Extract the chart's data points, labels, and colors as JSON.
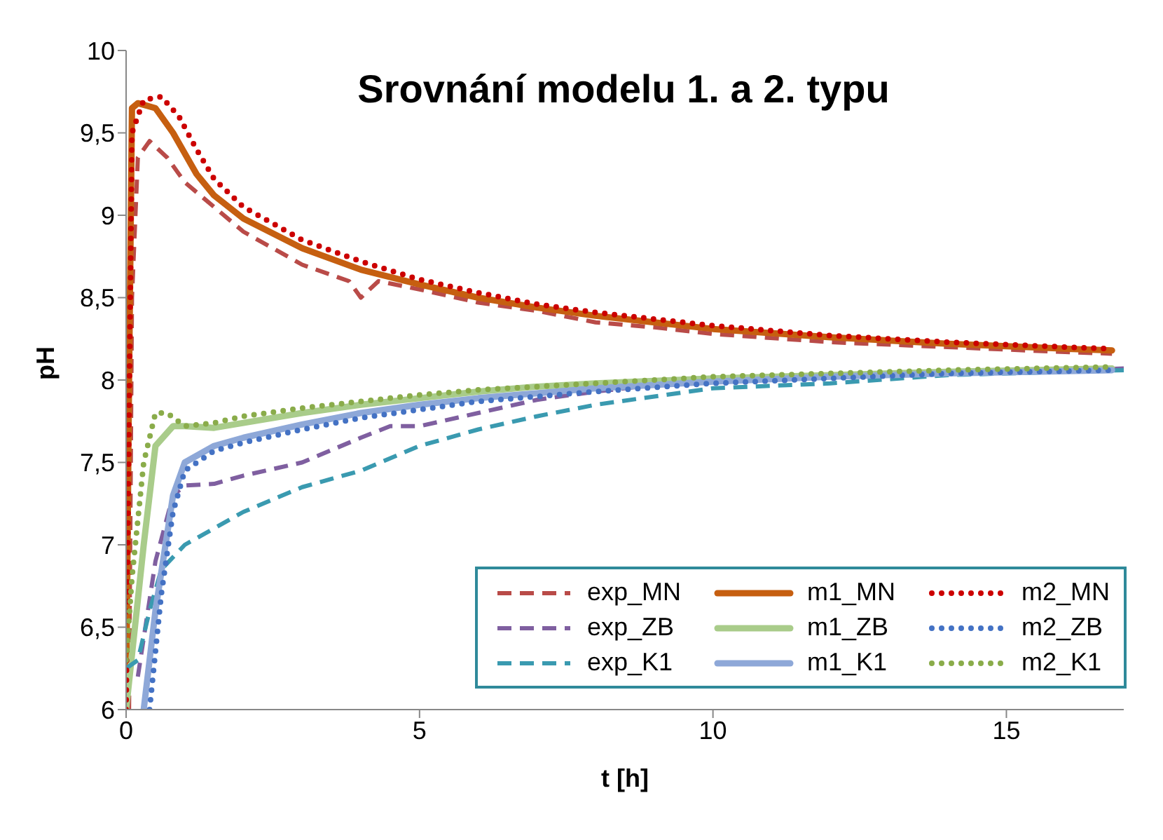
{
  "chart_data": {
    "type": "line",
    "title": "Srovnání modelu 1. a 2. typu",
    "xlabel": "t [h]",
    "ylabel": "pH",
    "xlim": [
      0,
      17
    ],
    "xticks": [
      0,
      5,
      10,
      15
    ],
    "ylim": [
      6,
      10
    ],
    "yticks": [
      6,
      {
        "value": 6.5,
        "label": "6,5"
      },
      7,
      {
        "value": 7.5,
        "label": "7,5"
      },
      8,
      {
        "value": 8.5,
        "label": "8,5"
      },
      9,
      {
        "value": 9.5,
        "label": "9,5"
      },
      10
    ],
    "grid": false,
    "legend": "bottom right",
    "marker": "none",
    "series": [
      {
        "name": "exp_MN",
        "color": "#b94b48",
        "line_style": "dashed",
        "x": [
          0.05,
          0.1,
          0.2,
          0.4,
          0.7,
          1,
          1.5,
          2,
          3,
          3.8,
          4,
          4.3,
          5,
          6,
          7,
          8,
          9,
          10,
          12,
          14,
          16,
          16.8
        ],
        "values": [
          6,
          8.5,
          9.35,
          9.45,
          9.35,
          9.2,
          9.05,
          8.9,
          8.7,
          8.6,
          8.5,
          8.6,
          8.55,
          8.47,
          8.42,
          8.35,
          8.32,
          8.28,
          8.23,
          8.2,
          8.17,
          8.16
        ]
      },
      {
        "name": "m1_MN",
        "color": "#c65f10",
        "line_style": "solid",
        "x": [
          0,
          0.05,
          0.1,
          0.2,
          0.5,
          0.8,
          1.2,
          1.5,
          2,
          3,
          4,
          5,
          6,
          7,
          8,
          9,
          10,
          12,
          14,
          16,
          16.8
        ],
        "values": [
          6,
          8,
          9.65,
          9.68,
          9.65,
          9.5,
          9.25,
          9.12,
          8.98,
          8.8,
          8.67,
          8.58,
          8.5,
          8.44,
          8.39,
          8.35,
          8.31,
          8.26,
          8.22,
          8.19,
          8.18
        ]
      },
      {
        "name": "m2_MN",
        "color": "#cc0000",
        "line_style": "dotted",
        "x": [
          0,
          0.1,
          0.3,
          0.6,
          0.9,
          1.2,
          1.5,
          2,
          3,
          4,
          5,
          6,
          7,
          8,
          9,
          10,
          12,
          14,
          16,
          16.8
        ],
        "values": [
          6,
          9.5,
          9.7,
          9.72,
          9.6,
          9.4,
          9.22,
          9.05,
          8.85,
          8.72,
          8.61,
          8.53,
          8.46,
          8.41,
          8.37,
          8.33,
          8.27,
          8.23,
          8.2,
          8.19
        ]
      },
      {
        "name": "exp_ZB",
        "color": "#7f5fa0",
        "line_style": "dashed",
        "x": [
          0.2,
          0.5,
          0.8,
          1,
          1.5,
          2,
          3,
          4,
          4.5,
          5,
          6,
          7,
          8,
          9,
          10,
          12,
          14,
          16,
          17
        ],
        "values": [
          6.2,
          6.9,
          7.3,
          7.36,
          7.37,
          7.42,
          7.5,
          7.65,
          7.72,
          7.72,
          7.8,
          7.88,
          7.93,
          7.97,
          8,
          8.03,
          8.05,
          8.06,
          8.07
        ]
      },
      {
        "name": "m1_ZB",
        "color": "#a9cc8a",
        "line_style": "solid",
        "x": [
          0,
          0.3,
          0.5,
          0.8,
          1,
          1.5,
          2,
          3,
          4,
          5,
          6,
          7,
          8,
          10,
          12,
          14,
          16.8
        ],
        "values": [
          6,
          7,
          7.6,
          7.72,
          7.72,
          7.71,
          7.74,
          7.8,
          7.85,
          7.89,
          7.93,
          7.96,
          7.98,
          8.01,
          8.03,
          8.05,
          8.07
        ]
      },
      {
        "name": "m2_ZB",
        "color": "#4472c4",
        "line_style": "dotted",
        "x": [
          0.4,
          0.6,
          0.8,
          1,
          1.5,
          2,
          3,
          4,
          5,
          6,
          8,
          10,
          12,
          14,
          16.8
        ],
        "values": [
          6,
          6.7,
          7.2,
          7.45,
          7.57,
          7.62,
          7.7,
          7.77,
          7.82,
          7.87,
          7.93,
          7.98,
          8.01,
          8.04,
          8.06
        ]
      },
      {
        "name": "exp_K1",
        "color": "#3a9ab0",
        "line_style": "dashed",
        "x": [
          0,
          0.2,
          0.4,
          0.6,
          1,
          1.5,
          2,
          3,
          4,
          5,
          6,
          7,
          8,
          9,
          10,
          12,
          14,
          16,
          17
        ],
        "values": [
          6.25,
          6.3,
          6.6,
          6.85,
          7,
          7.1,
          7.2,
          7.35,
          7.45,
          7.6,
          7.7,
          7.78,
          7.85,
          7.9,
          7.95,
          7.98,
          8.03,
          8.05,
          8.06
        ]
      },
      {
        "name": "m1_K1",
        "color": "#8ea8d8",
        "line_style": "solid",
        "x": [
          0.3,
          0.5,
          0.8,
          1,
          1.5,
          2,
          3,
          4,
          5,
          6,
          8,
          10,
          12,
          14,
          16.8
        ],
        "values": [
          6,
          6.6,
          7.3,
          7.5,
          7.6,
          7.65,
          7.73,
          7.8,
          7.85,
          7.89,
          7.95,
          7.99,
          8.02,
          8.04,
          8.06
        ]
      },
      {
        "name": "m2_K1",
        "color": "#8aac4a",
        "line_style": "dotted",
        "x": [
          0,
          0.1,
          0.3,
          0.5,
          0.7,
          1,
          1.5,
          2,
          3,
          4,
          5,
          6,
          8,
          10,
          12,
          14,
          16.8
        ],
        "values": [
          6.3,
          6.8,
          7.5,
          7.8,
          7.8,
          7.72,
          7.74,
          7.78,
          7.83,
          7.87,
          7.91,
          7.94,
          7.98,
          8.02,
          8.04,
          8.06,
          8.08
        ]
      }
    ]
  }
}
